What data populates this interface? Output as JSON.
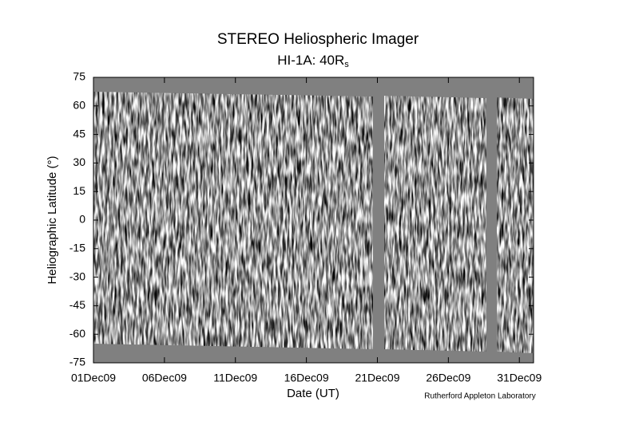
{
  "chart_data": {
    "type": "image",
    "title": "STEREO Heliospheric Imager",
    "subtitle": "HI-1A: 40R",
    "subtitle_subscript": "s",
    "x_label": "Date (UT)",
    "y_label": "Heliographic Latitude (°)",
    "credit": "Rutherford Appleton Laboratory",
    "xlim": [
      "2009-12-01",
      "2010-01-01"
    ],
    "xticks": [
      {
        "value": "2009-12-01",
        "label": "01Dec09"
      },
      {
        "value": "2009-12-06",
        "label": "06Dec09"
      },
      {
        "value": "2009-12-11",
        "label": "11Dec09"
      },
      {
        "value": "2009-12-16",
        "label": "16Dec09"
      },
      {
        "value": "2009-12-21",
        "label": "21Dec09"
      },
      {
        "value": "2009-12-26",
        "label": "26Dec09"
      },
      {
        "value": "2009-12-31",
        "label": "31Dec09"
      }
    ],
    "ylim": [
      -75,
      75
    ],
    "yticks": [
      -75,
      -60,
      -45,
      -30,
      -15,
      0,
      15,
      30,
      45,
      60,
      75
    ]
  }
}
